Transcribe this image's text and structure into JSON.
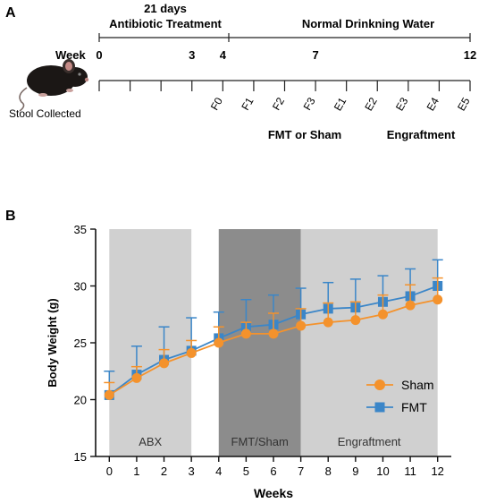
{
  "panel_a": {
    "letter": "A",
    "week_label": "Week",
    "stool_label": "Stool Collected",
    "treatment_days": "21 days",
    "treatment_label": "Antibiotic Treatment",
    "water_label": "Normal Drinkning Water",
    "major_ticks": [
      {
        "label": "0",
        "week": 0
      },
      {
        "label": "3",
        "week": 3
      },
      {
        "label": "4",
        "week": 4
      },
      {
        "label": "7",
        "week": 7
      },
      {
        "label": "12",
        "week": 12
      }
    ],
    "samples": [
      {
        "label": "F0",
        "week": 4
      },
      {
        "label": "F1",
        "week": 5
      },
      {
        "label": "F2",
        "week": 6
      },
      {
        "label": "F3",
        "week": 7
      },
      {
        "label": "E1",
        "week": 8
      },
      {
        "label": "E2",
        "week": 9
      },
      {
        "label": "E3",
        "week": 10
      },
      {
        "label": "E4",
        "week": 11
      },
      {
        "label": "E5",
        "week": 12
      }
    ],
    "fmt_label": "FMT or Sham",
    "engraftment_label": "Engraftment"
  },
  "chart_data": {
    "panel_letter": "B",
    "type": "line",
    "xlabel": "Weeks",
    "ylabel": "Body Weight (g)",
    "xlim": [
      -0.5,
      12.5
    ],
    "ylim": [
      15,
      35
    ],
    "x_ticks": [
      0,
      1,
      2,
      3,
      4,
      5,
      6,
      7,
      8,
      9,
      10,
      11,
      12
    ],
    "y_ticks": [
      15,
      20,
      25,
      30,
      35
    ],
    "x": [
      0,
      1,
      2,
      3,
      4,
      5,
      6,
      7,
      8,
      9,
      10,
      11,
      12
    ],
    "regions": [
      {
        "label": "ABX",
        "start": 0,
        "end": 3,
        "color": "#d0d0d0"
      },
      {
        "label": "FMT/Sham",
        "start": 4,
        "end": 7,
        "color": "#8c8c8c"
      },
      {
        "label": "Engraftment",
        "start": 7,
        "end": 12,
        "color": "#d0d0d0"
      }
    ],
    "legend_position": "right",
    "series": [
      {
        "name": "Sham",
        "marker": "circle",
        "color": "#f4922c",
        "values": [
          20.4,
          21.9,
          23.2,
          24.1,
          25.0,
          25.8,
          25.8,
          26.5,
          26.8,
          27.0,
          27.5,
          28.3,
          28.8
        ],
        "error": [
          1.1,
          1.0,
          1.2,
          1.1,
          1.4,
          1.0,
          1.8,
          1.5,
          1.7,
          1.6,
          1.7,
          1.8,
          1.9
        ]
      },
      {
        "name": "FMT",
        "marker": "square",
        "color": "#3b86c8",
        "values": [
          20.4,
          22.2,
          23.5,
          24.3,
          25.4,
          26.4,
          26.6,
          27.5,
          28.0,
          28.1,
          28.6,
          29.1,
          30.0
        ],
        "error": [
          2.1,
          2.5,
          2.9,
          2.9,
          2.3,
          2.4,
          2.6,
          2.3,
          2.3,
          2.5,
          2.3,
          2.4,
          2.3
        ]
      }
    ]
  }
}
